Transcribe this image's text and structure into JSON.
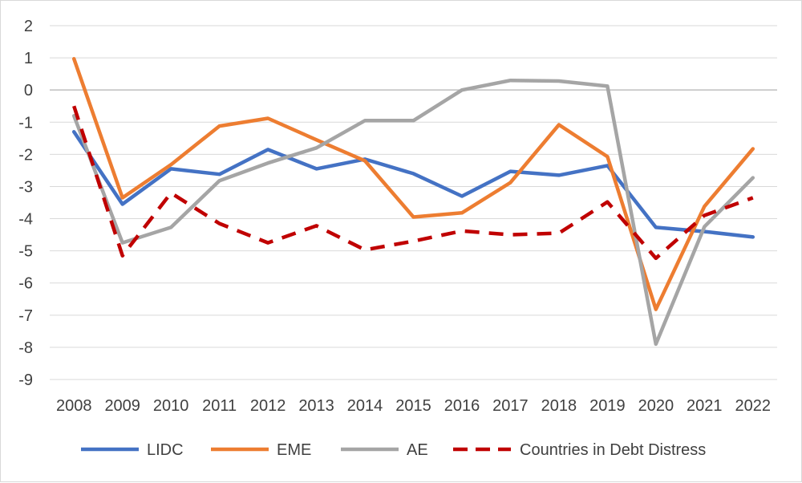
{
  "chart_data": {
    "type": "line",
    "title": "",
    "xlabel": "",
    "ylabel": "",
    "categories": [
      "2008",
      "2009",
      "2010",
      "2011",
      "2012",
      "2013",
      "2014",
      "2015",
      "2016",
      "2017",
      "2018",
      "2019",
      "2020",
      "2021",
      "2022"
    ],
    "ylim": [
      -9,
      2
    ],
    "yticks": [
      2,
      1,
      0,
      -1,
      -2,
      -3,
      -4,
      -5,
      -6,
      -7,
      -8,
      -9
    ],
    "grid": true,
    "legend_position": "bottom",
    "series": [
      {
        "name": "LIDC",
        "color": "#4472c4",
        "style": "solid",
        "values": [
          -1.3,
          -3.55,
          -2.45,
          -2.62,
          -1.85,
          -2.45,
          -2.15,
          -2.6,
          -3.3,
          -2.53,
          -2.65,
          -2.35,
          -4.27,
          -4.4,
          -4.57
        ]
      },
      {
        "name": "EME",
        "color": "#ed7d31",
        "style": "solid",
        "values": [
          0.97,
          -3.35,
          -2.32,
          -1.12,
          -0.88,
          -1.55,
          -2.2,
          -3.95,
          -3.82,
          -2.88,
          -1.08,
          -2.07,
          -6.82,
          -3.62,
          -1.83
        ]
      },
      {
        "name": "AE",
        "color": "#a5a5a5",
        "style": "solid",
        "values": [
          -0.8,
          -4.75,
          -4.27,
          -2.82,
          -2.27,
          -1.8,
          -0.95,
          -0.95,
          0.0,
          0.3,
          0.28,
          0.12,
          -7.9,
          -4.25,
          -2.73
        ]
      },
      {
        "name": "Countries in Debt Distress",
        "color": "#c00000",
        "style": "dashed",
        "values": [
          -0.5,
          -5.15,
          -3.2,
          -4.15,
          -4.75,
          -4.22,
          -4.97,
          -4.7,
          -4.38,
          -4.5,
          -4.45,
          -3.48,
          -5.23,
          -3.9,
          -3.35
        ]
      }
    ]
  }
}
